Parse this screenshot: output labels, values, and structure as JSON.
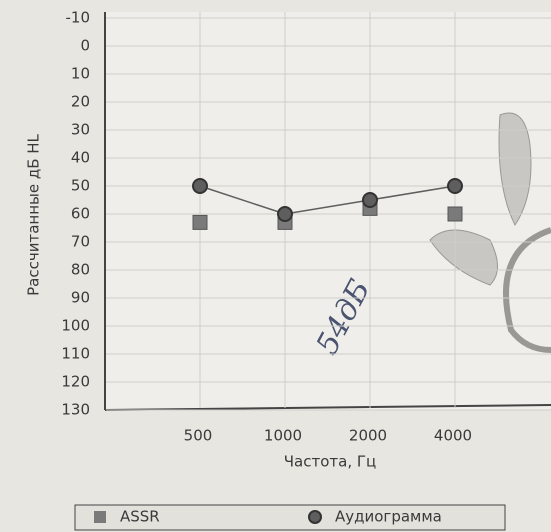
{
  "chart_data": {
    "type": "line",
    "y_label": "Рассчитанные дБ HL",
    "x_label": "Частота, Гц",
    "annotation": "54дБ",
    "categories": [
      "500",
      "1000",
      "2000",
      "4000"
    ],
    "series": [
      {
        "name": "ASSR",
        "color": "#7a7a7a",
        "marker": "square",
        "line": false,
        "values": [
          63,
          63,
          58,
          60
        ]
      },
      {
        "name": "Аудиограмма",
        "color": "#5e5e5e",
        "marker": "circle",
        "line": true,
        "values": [
          50,
          60,
          55,
          50
        ]
      }
    ],
    "ylim": [
      130,
      -10
    ],
    "yticks": [
      -10,
      0,
      10,
      20,
      30,
      40,
      50,
      60,
      70,
      80,
      90,
      100,
      110,
      120,
      130
    ],
    "grid": true
  }
}
